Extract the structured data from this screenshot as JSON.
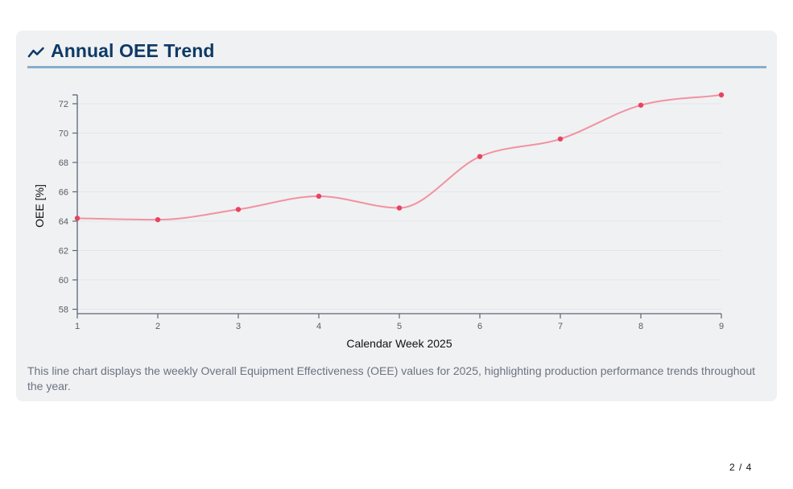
{
  "card": {
    "title": "Annual OEE Trend",
    "icon": "trend-line-icon",
    "description": "This line chart displays the weekly Overall Equipment Effectiveness (OEE) values for 2025, highlighting production performance trends throughout the year."
  },
  "pager": {
    "current": "2",
    "separator": "/",
    "total": "4",
    "text": "2 / 4"
  },
  "colors": {
    "title": "#0e3a66",
    "header_rule": "#86afca",
    "line": "#f093a2",
    "point": "#e8435e",
    "axis": "#5a6778",
    "card_bg": "#f0f1f3"
  },
  "chart_data": {
    "type": "line",
    "title": "",
    "xlabel": "Calendar Week 2025",
    "ylabel": "OEE [%]",
    "x": [
      1,
      2,
      3,
      4,
      5,
      6,
      7,
      8,
      9
    ],
    "series": [
      {
        "values": [
          64.2,
          64.1,
          64.8,
          65.7,
          64.9,
          68.4,
          69.6,
          71.9,
          72.6
        ]
      }
    ],
    "xlim": [
      1,
      9
    ],
    "ylim": [
      57.7,
      72.6
    ],
    "xticks": [
      1,
      2,
      3,
      4,
      5,
      6,
      7,
      8,
      9
    ],
    "yticks": [
      58,
      60,
      62,
      64,
      66,
      68,
      70,
      72
    ],
    "grid": true,
    "curve": "smooth"
  }
}
